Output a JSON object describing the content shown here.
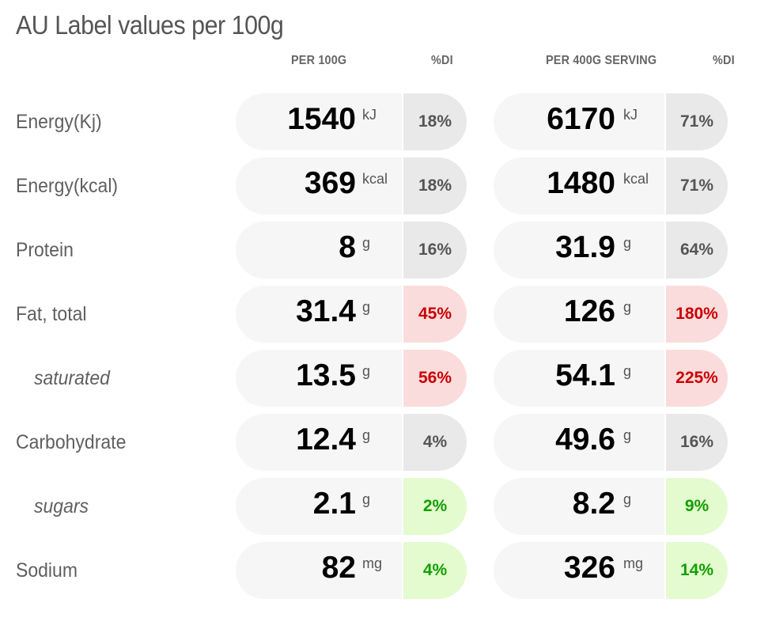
{
  "title": "AU Label values per 100g",
  "headers": {
    "per100": "PER 100G",
    "di1": "%DI",
    "perServing": "PER 400G SERVING",
    "di2": "%DI"
  },
  "colors": {
    "high_bg": "#fbdcdc",
    "high_text": "#cc0000",
    "low_bg": "#e3fbcf",
    "low_text": "#129f00",
    "neutral_bg": "#e9e9e9"
  },
  "rows": [
    {
      "label": "Energy(Kj)",
      "sub": false,
      "p100": "1540",
      "p100_unit": "kJ",
      "p100_di": "18%",
      "p100_level": "neutral",
      "srv": "6170",
      "srv_unit": "kJ",
      "srv_di": "71%",
      "srv_level": "neutral"
    },
    {
      "label": "Energy(kcal)",
      "sub": false,
      "p100": "369",
      "p100_unit": "kcal",
      "p100_di": "18%",
      "p100_level": "neutral",
      "srv": "1480",
      "srv_unit": "kcal",
      "srv_di": "71%",
      "srv_level": "neutral"
    },
    {
      "label": "Protein",
      "sub": false,
      "p100": "8",
      "p100_unit": "g",
      "p100_di": "16%",
      "p100_level": "neutral",
      "srv": "31.9",
      "srv_unit": "g",
      "srv_di": "64%",
      "srv_level": "neutral"
    },
    {
      "label": "Fat, total",
      "sub": false,
      "p100": "31.4",
      "p100_unit": "g",
      "p100_di": "45%",
      "p100_level": "red",
      "srv": "126",
      "srv_unit": "g",
      "srv_di": "180%",
      "srv_level": "red"
    },
    {
      "label": "saturated",
      "sub": true,
      "p100": "13.5",
      "p100_unit": "g",
      "p100_di": "56%",
      "p100_level": "red",
      "srv": "54.1",
      "srv_unit": "g",
      "srv_di": "225%",
      "srv_level": "red"
    },
    {
      "label": "Carbohydrate",
      "sub": false,
      "p100": "12.4",
      "p100_unit": "g",
      "p100_di": "4%",
      "p100_level": "neutral",
      "srv": "49.6",
      "srv_unit": "g",
      "srv_di": "16%",
      "srv_level": "neutral"
    },
    {
      "label": "sugars",
      "sub": true,
      "p100": "2.1",
      "p100_unit": "g",
      "p100_di": "2%",
      "p100_level": "green",
      "srv": "8.2",
      "srv_unit": "g",
      "srv_di": "9%",
      "srv_level": "green"
    },
    {
      "label": "Sodium",
      "sub": false,
      "p100": "82",
      "p100_unit": "mg",
      "p100_di": "4%",
      "p100_level": "green",
      "srv": "326",
      "srv_unit": "mg",
      "srv_di": "14%",
      "srv_level": "green"
    }
  ]
}
